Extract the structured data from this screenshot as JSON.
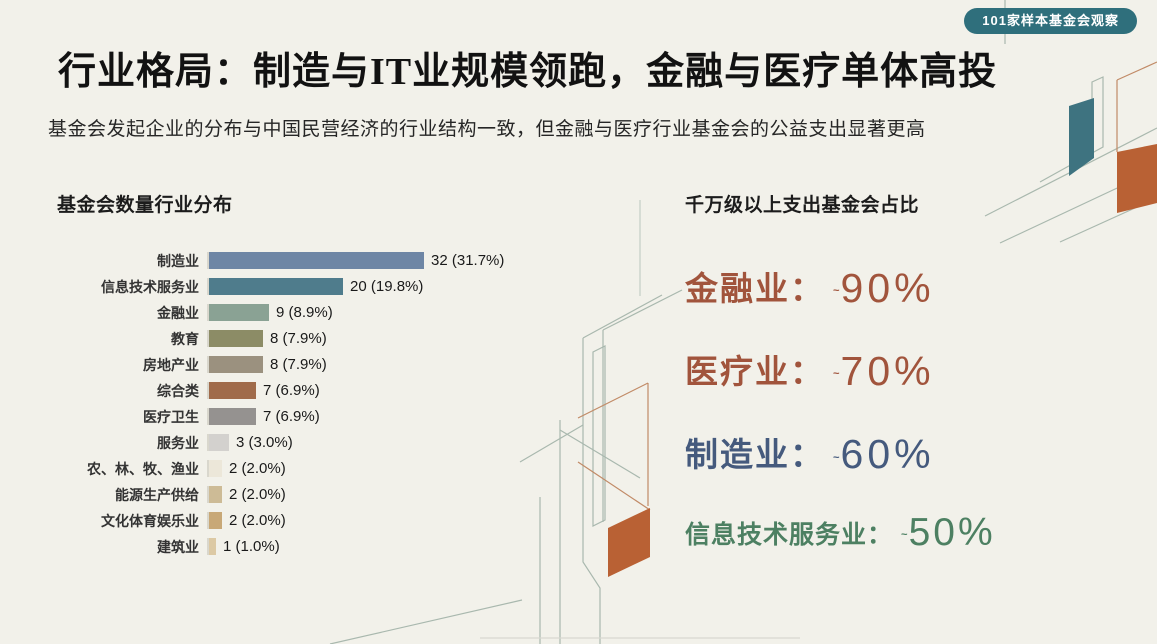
{
  "badge": {
    "label": "101家样本基金会观察"
  },
  "title": "行业格局：制造与IT业规模领跑，金融与医疗单体高投",
  "subtitle": "基金会发起企业的分布与中国民营经济的行业结构一致，但金融与医疗行业基金会的公益支出显著更高",
  "chart_data": {
    "type": "bar",
    "orientation": "horizontal",
    "title": "基金会数量行业分布",
    "categories": [
      "制造业",
      "信息技术服务业",
      "金融业",
      "教育",
      "房地产业",
      "综合类",
      "医疗卫生",
      "服务业",
      "农、林、牧、渔业",
      "能源生产供给",
      "文化体育娱乐业",
      "建筑业"
    ],
    "values": [
      32,
      20,
      9,
      8,
      8,
      7,
      7,
      3,
      2,
      2,
      2,
      1
    ],
    "value_labels": [
      "32 (31.7%)",
      "20 (19.8%)",
      "9 (8.9%)",
      "8 (7.9%)",
      "8 (7.9%)",
      "7 (6.9%)",
      "7 (6.9%)",
      "3 (3.0%)",
      "2 (2.0%)",
      "2 (2.0%)",
      "2 (2.0%)",
      "1 (1.0%)"
    ],
    "bar_colors": [
      "#6e86a5",
      "#4f7c8c",
      "#8aa294",
      "#8c8c66",
      "#9b917f",
      "#a06b4b",
      "#959290",
      "#d3d1ce",
      "#ece7d9",
      "#cdbb96",
      "#c8a877",
      "#dcc9a4"
    ],
    "xlim": [
      0,
      34
    ],
    "grid": false,
    "legend": false
  },
  "highlights": {
    "title": "千万级以上支出基金会占比",
    "items": [
      {
        "label": "金融业：",
        "tilde": "~",
        "value": "90%",
        "color": "#a1543c",
        "size": "large"
      },
      {
        "label": "医疗业：",
        "tilde": "~",
        "value": "70%",
        "color": "#a1543c",
        "size": "large"
      },
      {
        "label": "制造业：",
        "tilde": "~",
        "value": "60%",
        "color": "#455a7d",
        "size": "large"
      },
      {
        "label": "信息技术服务业：",
        "tilde": "~",
        "value": "50%",
        "color": "#4d8062",
        "size": "small"
      }
    ]
  },
  "colors": {
    "background": "#f2f1ea",
    "badge_teal": "#2f6f7c",
    "decor_orange": "#b96134",
    "decor_teal": "#3e7380",
    "decor_line_sage": "#a9b8ae",
    "decor_line_orange": "#c18a66",
    "axis_line": "#d9d7cd"
  }
}
